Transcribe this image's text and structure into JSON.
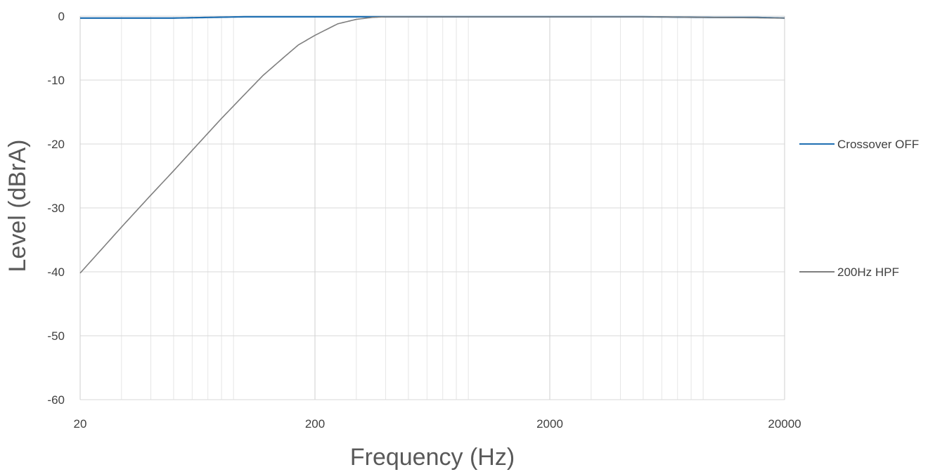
{
  "chart_data": {
    "type": "line",
    "xlabel": "Frequency (Hz)",
    "ylabel": "Level (dBrA)",
    "x_scale": "log",
    "xlim": [
      20,
      20000
    ],
    "ylim": [
      -60,
      0
    ],
    "x_ticks": [
      "20",
      "200",
      "2000",
      "20000"
    ],
    "y_ticks": [
      "0",
      "-10",
      "-20",
      "-30",
      "-40",
      "-50",
      "-60"
    ],
    "grid": true,
    "legend_position": "right",
    "series": [
      {
        "name": "Crossover OFF",
        "color": "#1f6fb2",
        "x": [
          20,
          30,
          50,
          70,
          100,
          200,
          500,
          1000,
          2000,
          5000,
          10000,
          15000,
          20000
        ],
        "y": [
          -0.3,
          -0.3,
          -0.3,
          -0.2,
          -0.1,
          -0.1,
          -0.1,
          -0.1,
          -0.1,
          -0.1,
          -0.2,
          -0.2,
          -0.3
        ]
      },
      {
        "name": "200Hz HPF",
        "color": "#7f7f7f",
        "x": [
          20,
          30,
          40,
          50,
          60,
          80,
          100,
          120,
          150,
          170,
          200,
          250,
          300,
          350,
          400,
          500,
          1000,
          2000,
          5000,
          10000,
          20000
        ],
        "y": [
          -40.2,
          -33.0,
          -28.0,
          -24.2,
          -21.0,
          -16.0,
          -12.3,
          -9.3,
          -6.2,
          -4.5,
          -3.0,
          -1.2,
          -0.5,
          -0.2,
          -0.1,
          -0.1,
          -0.1,
          -0.1,
          -0.1,
          -0.2,
          -0.3
        ]
      }
    ]
  }
}
